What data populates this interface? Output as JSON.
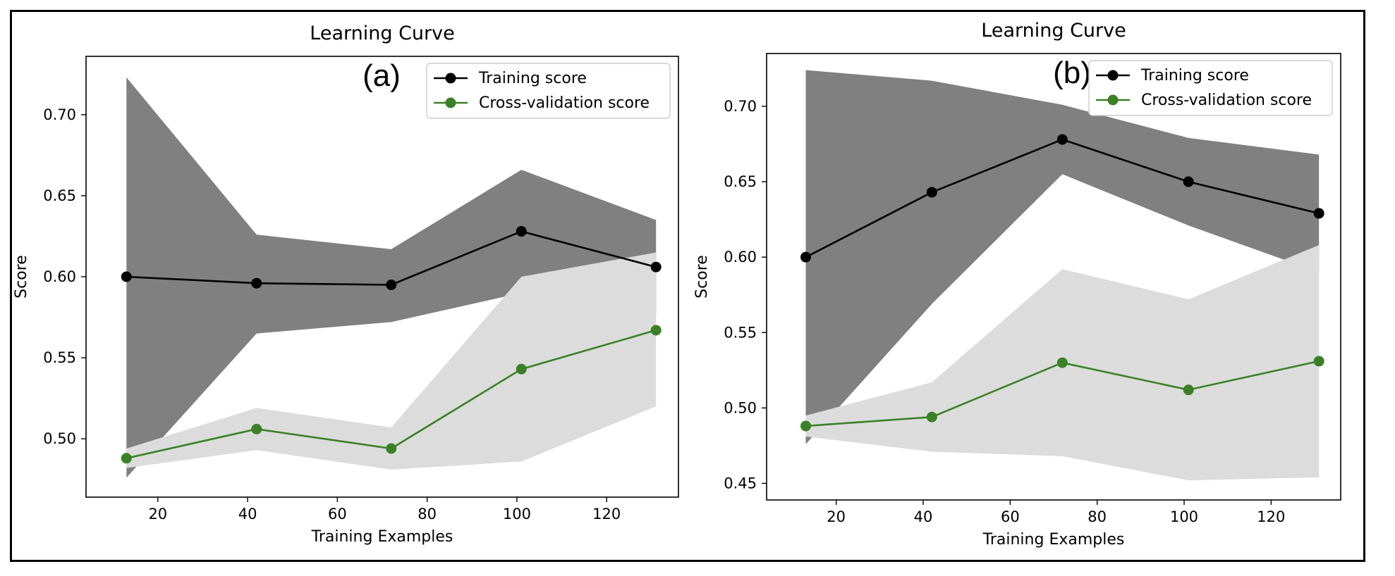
{
  "chart_data": [
    {
      "type": "line",
      "panel_label": "(a)",
      "title": "Learning Curve",
      "xlabel": "Training Examples",
      "ylabel": "Score",
      "xlim": [
        4,
        136
      ],
      "ylim": [
        0.464,
        0.736
      ],
      "xticks": [
        20,
        40,
        60,
        80,
        100,
        120
      ],
      "yticks": [
        0.5,
        0.55,
        0.6,
        0.65,
        0.7
      ],
      "grid": false,
      "legend": "top-right",
      "x": [
        13,
        42,
        72,
        101,
        131
      ],
      "series": [
        {
          "name": "Training score",
          "color": "#000000",
          "band_color": "#808080",
          "values": [
            0.6,
            0.596,
            0.595,
            0.628,
            0.606
          ],
          "upper": [
            0.723,
            0.626,
            0.617,
            0.666,
            0.635
          ],
          "lower": [
            0.476,
            0.565,
            0.572,
            0.59,
            0.576
          ]
        },
        {
          "name": "Cross-validation score",
          "color": "#3a8027",
          "band_color": "#dcdcdc",
          "values": [
            0.488,
            0.506,
            0.494,
            0.543,
            0.567
          ],
          "upper": [
            0.494,
            0.519,
            0.507,
            0.6,
            0.615
          ],
          "lower": [
            0.482,
            0.493,
            0.481,
            0.486,
            0.52
          ]
        }
      ]
    },
    {
      "type": "line",
      "panel_label": "(b)",
      "title": "Learning Curve",
      "xlabel": "Training Examples",
      "ylabel": "Score",
      "xlim": [
        4,
        136
      ],
      "ylim": [
        0.439,
        0.735
      ],
      "xticks": [
        20,
        40,
        60,
        80,
        100,
        120
      ],
      "yticks": [
        0.45,
        0.5,
        0.55,
        0.6,
        0.65,
        0.7
      ],
      "grid": false,
      "legend": "top-right",
      "x": [
        13,
        42,
        72,
        101,
        131
      ],
      "series": [
        {
          "name": "Training score",
          "color": "#000000",
          "band_color": "#808080",
          "values": [
            0.6,
            0.643,
            0.678,
            0.65,
            0.629
          ],
          "upper": [
            0.724,
            0.717,
            0.701,
            0.679,
            0.668
          ],
          "lower": [
            0.476,
            0.569,
            0.655,
            0.621,
            0.59
          ]
        },
        {
          "name": "Cross-validation score",
          "color": "#3a8027",
          "band_color": "#dcdcdc",
          "values": [
            0.488,
            0.494,
            0.53,
            0.512,
            0.531
          ],
          "upper": [
            0.495,
            0.517,
            0.592,
            0.572,
            0.608
          ],
          "lower": [
            0.481,
            0.471,
            0.468,
            0.452,
            0.454
          ]
        }
      ]
    }
  ]
}
